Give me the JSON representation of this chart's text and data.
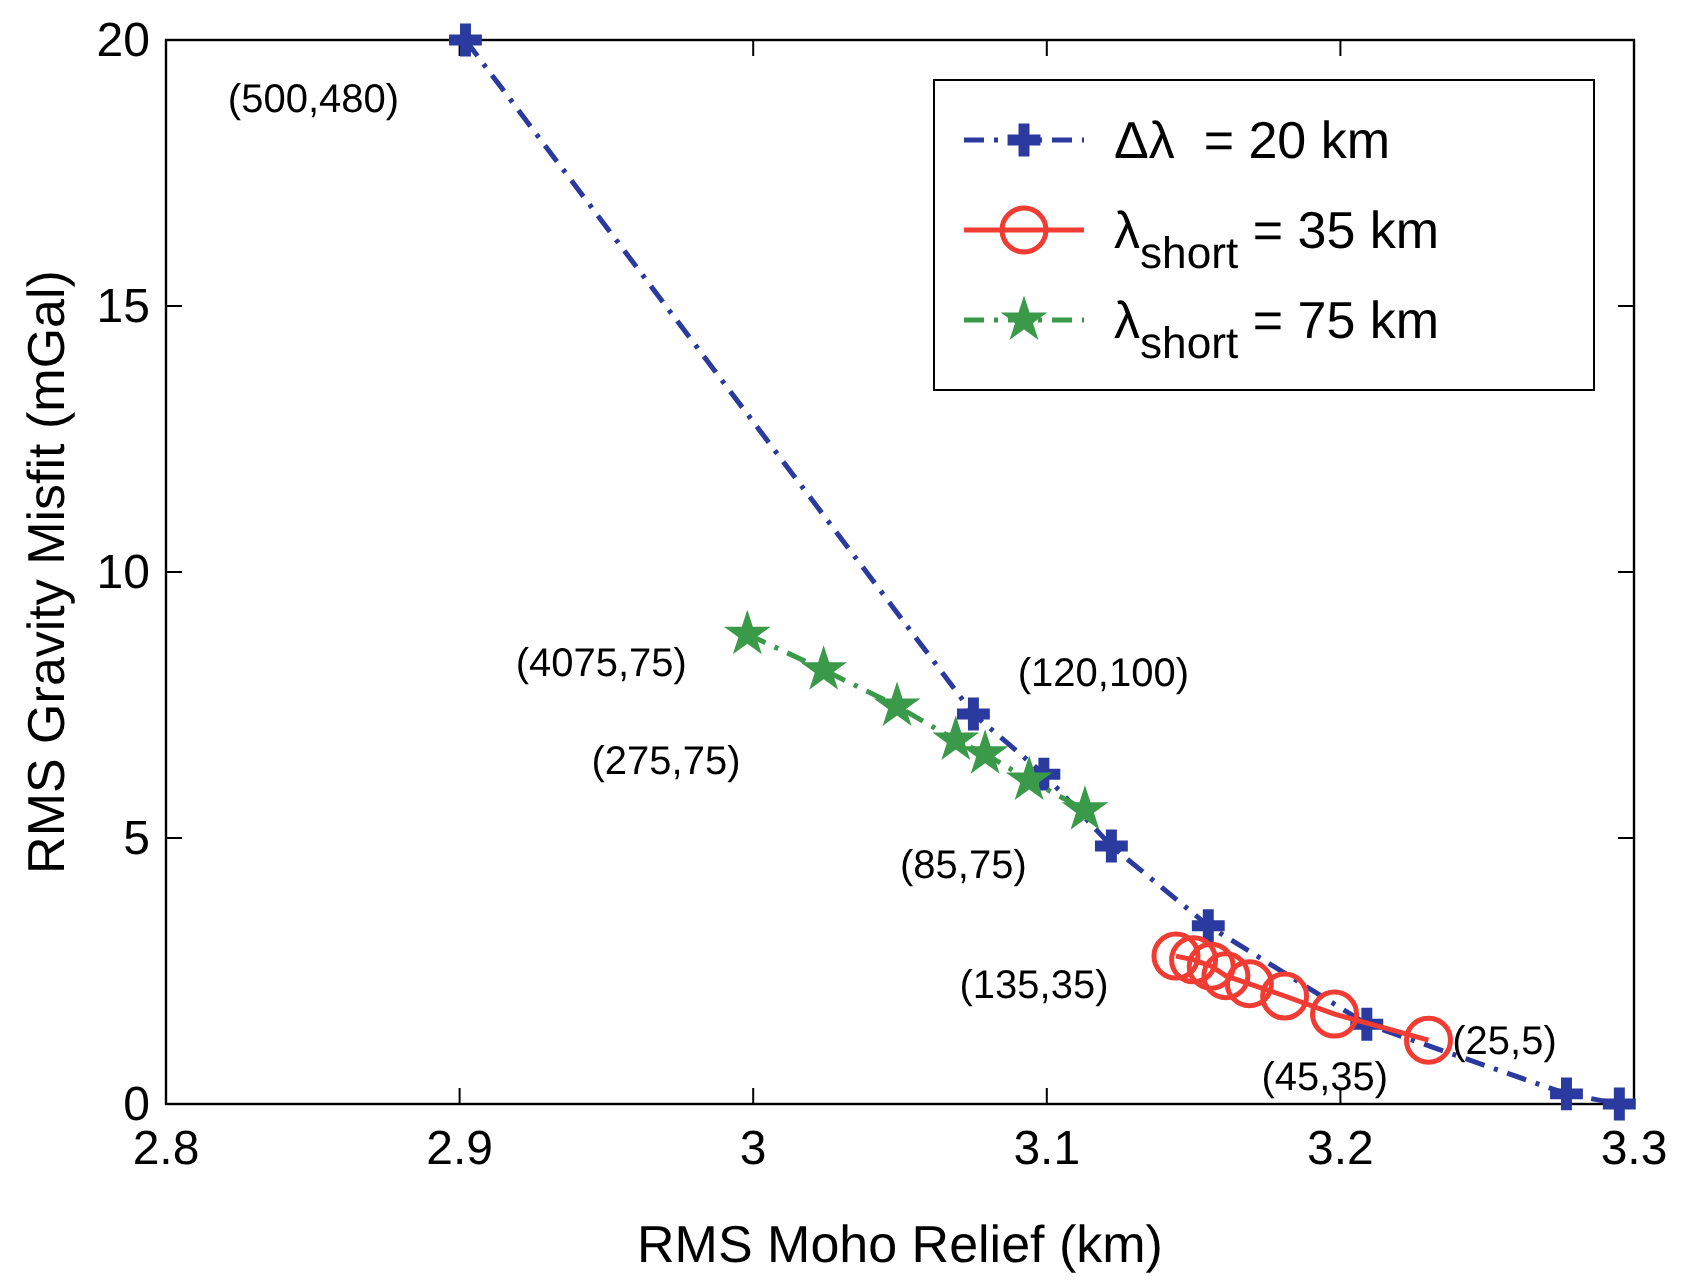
{
  "chart_data": {
    "type": "line",
    "xlabel": "RMS Moho Relief (km)",
    "ylabel": "RMS Gravity Misfit (mGal)",
    "xlim": [
      2.8,
      3.3
    ],
    "xticks": [
      2.8,
      2.9,
      3,
      3.1,
      3.2,
      3.3
    ],
    "ylim": [
      0,
      20
    ],
    "yticks": [
      0,
      5,
      10,
      15,
      20
    ],
    "grid": false,
    "legend": "top right",
    "series": [
      {
        "name": "Δλ  = 20 km",
        "color": "#2b3a9e",
        "marker": "cross",
        "line_style": "dashed",
        "x": [
          2.902,
          3.075,
          3.099,
          3.122,
          3.155,
          3.209,
          3.277,
          3.295
        ],
        "values": [
          20,
          7.33,
          6.2,
          4.85,
          3.35,
          1.5,
          0.19,
          0
        ]
      },
      {
        "name": "λ$_{short}$ = 35 km",
        "color": "#f03c32",
        "marker": "circle",
        "line_style": "solid",
        "x": [
          3.144,
          3.15,
          3.156,
          3.161,
          3.169,
          3.181,
          3.198,
          3.23
        ],
        "values": [
          2.78,
          2.71,
          2.59,
          2.41,
          2.26,
          2.03,
          1.69,
          1.2
        ]
      },
      {
        "name": "λ$_{short}$ = 75 km",
        "color": "#3a9a4a",
        "marker": "star",
        "line_style": "dashed",
        "x": [
          2.998,
          3.024,
          3.049,
          3.069,
          3.079,
          3.094,
          3.113
        ],
        "values": [
          8.83,
          8.16,
          7.48,
          6.84,
          6.58,
          6.09,
          5.53
        ]
      }
    ],
    "annotations": [
      {
        "text": "(500,480)",
        "x": 2.902,
        "y": 20
      },
      {
        "text": "(4075,75)",
        "x": 2.998,
        "y": 8.83
      },
      {
        "text": "(120,100)",
        "x": 3.075,
        "y": 7.33
      },
      "(275,75)",
      {
        "text": "(85,75)",
        "x": 3.122,
        "y": 4.85
      },
      {
        "text": "(135,35)",
        "x": 3.144,
        "y": 2.78
      },
      {
        "text": "(45,35)",
        "x": 3.209,
        "y": 1.5
      },
      {
        "text": "(25,5)",
        "x": 3.23,
        "y": 1.2
      }
    ]
  }
}
